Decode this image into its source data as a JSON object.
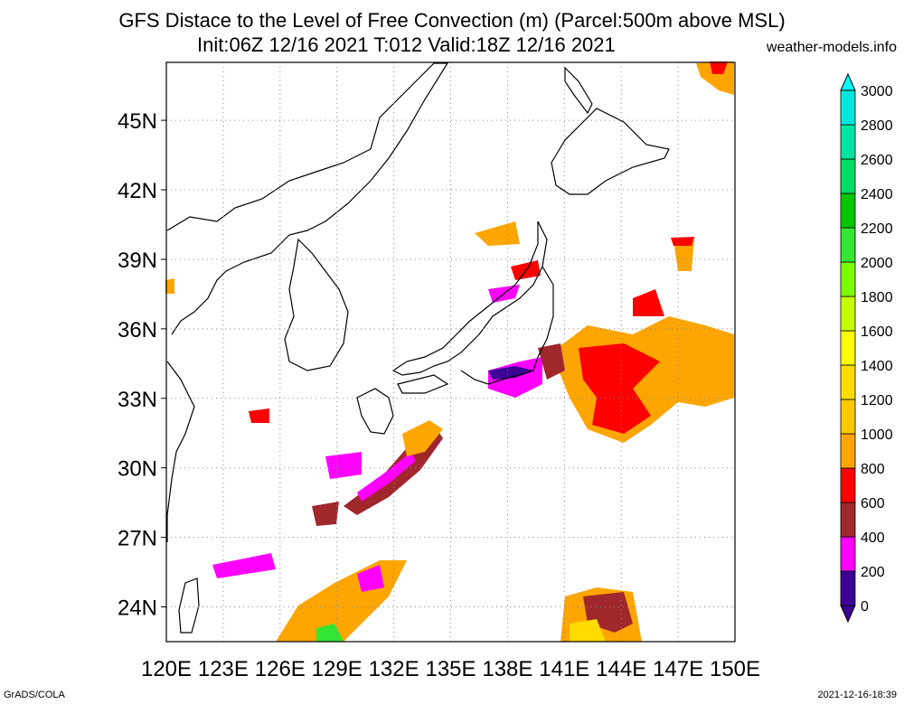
{
  "header": {
    "title_line1": "GFS Distace to the Level of Free Convection (m) (Parcel:500m above MSL)",
    "title_line2": "Init:06Z 12/16 2021 T:012 Valid:18Z 12/16 2021",
    "site": "weather-models.info"
  },
  "footer": {
    "left": "GrADS/COLA",
    "right": "2021-12-16-18:39"
  },
  "map": {
    "lon_range": [
      120,
      150
    ],
    "lat_range": [
      22.5,
      47.5
    ],
    "lon_labels": [
      "120E",
      "123E",
      "126E",
      "129E",
      "132E",
      "135E",
      "138E",
      "141E",
      "144E",
      "147E",
      "150E"
    ],
    "lat_labels": [
      "24N",
      "27N",
      "30N",
      "33N",
      "36N",
      "39N",
      "42N",
      "45N"
    ],
    "gridlines": "dotted"
  },
  "colorbar": {
    "levels": [
      "0",
      "200",
      "400",
      "600",
      "800",
      "1000",
      "1200",
      "1400",
      "1600",
      "1800",
      "2000",
      "2200",
      "2400",
      "2600",
      "2800",
      "3000"
    ],
    "colors": [
      "#3c0096",
      "#ff00ff",
      "#a0282c",
      "#ff0000",
      "#ffa500",
      "#ffc800",
      "#ffdc00",
      "#ffff00",
      "#c8ff00",
      "#7cff00",
      "#32e632",
      "#00c800",
      "#00dc64",
      "#00e6a0",
      "#00e6dc",
      "#00ffff"
    ]
  }
}
